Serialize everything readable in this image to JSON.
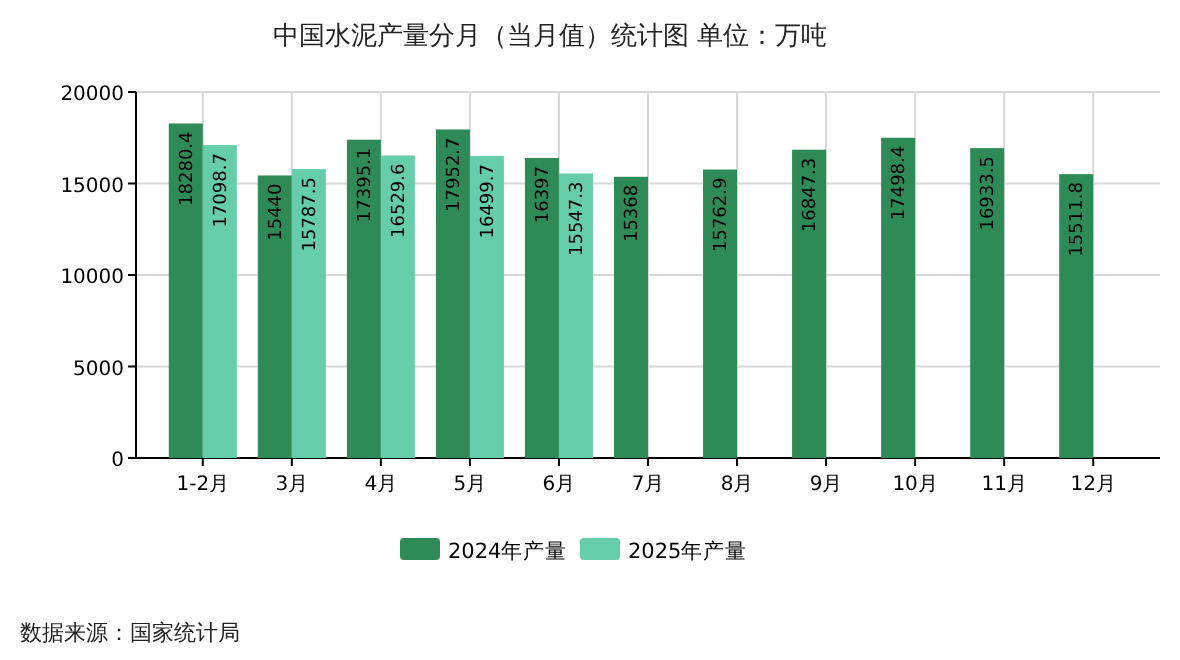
{
  "chart_data": {
    "type": "bar",
    "title": "中国水泥产量分月（当月值）统计图 单位：万吨",
    "categories": [
      "1-2月",
      "3月",
      "4月",
      "5月",
      "6月",
      "7月",
      "8月",
      "9月",
      "10月",
      "11月",
      "12月"
    ],
    "series": [
      {
        "name": "2024年产量",
        "color": "#2e8b57",
        "values": [
          18280.4,
          15440,
          17395.1,
          17952.7,
          16397,
          15368,
          15762.9,
          16847.3,
          17498.4,
          16933.5,
          15511.8
        ]
      },
      {
        "name": "2025年产量",
        "color": "#66cdaa",
        "values": [
          17098.7,
          15787.5,
          16529.6,
          16499.7,
          15547.3,
          null,
          null,
          null,
          null,
          null,
          null
        ]
      }
    ],
    "ylim": [
      0,
      20000
    ],
    "yticks": [
      0,
      5000,
      10000,
      15000,
      20000
    ],
    "grid": true,
    "legend": "bottom",
    "data_labels": true,
    "annotations": [
      "数据来源：国家统计局"
    ]
  }
}
